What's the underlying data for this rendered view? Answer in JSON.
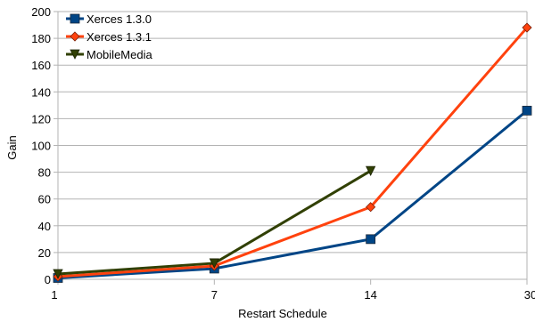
{
  "chart_data": {
    "type": "line",
    "title": "",
    "xlabel": "Restart Schedule",
    "ylabel": "Gain",
    "categories": [
      "1",
      "7",
      "14",
      "30"
    ],
    "ylim": [
      0,
      200
    ],
    "yticks": [
      0,
      20,
      40,
      60,
      80,
      100,
      120,
      140,
      160,
      180,
      200
    ],
    "grid": {
      "horizontal": true,
      "vertical": false
    },
    "legend_position": "top-left",
    "series": [
      {
        "name": "Xerces 1.3.0",
        "values": [
          1,
          8,
          30,
          126
        ],
        "color": "#004586",
        "marker": "square"
      },
      {
        "name": "Xerces 1.3.1",
        "values": [
          2,
          10,
          54,
          188
        ],
        "color": "#ff420e",
        "marker": "diamond"
      },
      {
        "name": "MobileMedia",
        "values": [
          4,
          12,
          81,
          null
        ],
        "color": "#314004",
        "marker": "triangle-down"
      }
    ]
  }
}
